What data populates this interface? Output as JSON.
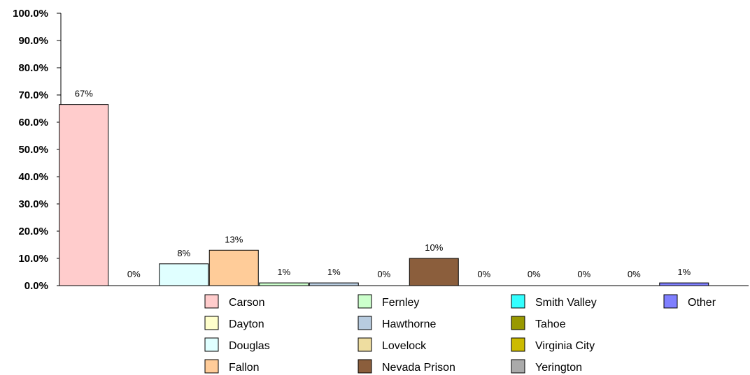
{
  "chart_data": {
    "type": "bar",
    "title": "",
    "xlabel": "",
    "ylabel": "",
    "ylim": [
      0,
      100
    ],
    "y_ticks": [
      "0.0%",
      "10.0%",
      "20.0%",
      "30.0%",
      "40.0%",
      "50.0%",
      "60.0%",
      "70.0%",
      "80.0%",
      "90.0%",
      "100.0%"
    ],
    "grid": false,
    "legend_position": "bottom",
    "series": [
      {
        "name": "Carson",
        "value": 66.5,
        "label": "67%",
        "color": "#FFCCCC"
      },
      {
        "name": "Dayton",
        "value": 0,
        "label": "0%",
        "color": "#FFFFCC"
      },
      {
        "name": "Douglas",
        "value": 8,
        "label": "8%",
        "color": "#E0FFFF"
      },
      {
        "name": "Fallon",
        "value": 13,
        "label": "13%",
        "color": "#FFCC99"
      },
      {
        "name": "Fernley",
        "value": 1,
        "label": "1%",
        "color": "#CCFFCC"
      },
      {
        "name": "Hawthorne",
        "value": 1,
        "label": "1%",
        "color": "#B8CCE0"
      },
      {
        "name": "Lovelock",
        "value": 0,
        "label": "0%",
        "color": "#EEDDA0"
      },
      {
        "name": "Nevada Prison",
        "value": 10,
        "label": "10%",
        "color": "#8B5E3C"
      },
      {
        "name": "Smith Valley",
        "value": 0,
        "label": "0%",
        "color": "#33FFFF"
      },
      {
        "name": "Tahoe",
        "value": 0,
        "label": "0%",
        "color": "#999900"
      },
      {
        "name": "Virginia City",
        "value": 0,
        "label": "0%",
        "color": "#CCBB00"
      },
      {
        "name": "Yerington",
        "value": 0,
        "label": "0%",
        "color": "#AAAAAA"
      },
      {
        "name": "Other",
        "value": 1,
        "label": "1%",
        "color": "#7F7FFF"
      }
    ]
  }
}
